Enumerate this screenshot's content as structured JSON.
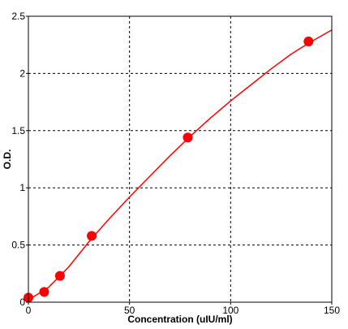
{
  "chart_data": {
    "type": "scatter",
    "title": "",
    "xlabel": "Concentration (uIU/ml)",
    "ylabel": "O.D.",
    "xlim": [
      0,
      150
    ],
    "ylim": [
      0,
      2.5
    ],
    "x_ticks": [
      "0",
      "50",
      "100",
      "150"
    ],
    "y_ticks": [
      "0",
      "0.5",
      "1",
      "1.5",
      "2",
      "2.5"
    ],
    "grid": true,
    "grid_style": "dashed",
    "legend": "none",
    "series": [
      {
        "kind": "points",
        "color": "#ff0000",
        "points": [
          {
            "x": 0,
            "y": 0.04
          },
          {
            "x": 7.8,
            "y": 0.09
          },
          {
            "x": 15.6,
            "y": 0.23
          },
          {
            "x": 31.3,
            "y": 0.58
          },
          {
            "x": 78.8,
            "y": 1.44
          },
          {
            "x": 138.5,
            "y": 2.28
          }
        ]
      },
      {
        "kind": "fitted-curve",
        "color": "#ff0000",
        "points": [
          {
            "x": 0,
            "y": 0.02
          },
          {
            "x": 10,
            "y": 0.13
          },
          {
            "x": 20,
            "y": 0.31
          },
          {
            "x": 30,
            "y": 0.53
          },
          {
            "x": 40,
            "y": 0.73
          },
          {
            "x": 50,
            "y": 0.92
          },
          {
            "x": 60,
            "y": 1.1
          },
          {
            "x": 70,
            "y": 1.28
          },
          {
            "x": 80,
            "y": 1.45
          },
          {
            "x": 90,
            "y": 1.61
          },
          {
            "x": 100,
            "y": 1.76
          },
          {
            "x": 110,
            "y": 1.9
          },
          {
            "x": 120,
            "y": 2.04
          },
          {
            "x": 130,
            "y": 2.17
          },
          {
            "x": 140,
            "y": 2.28
          },
          {
            "x": 150,
            "y": 2.38
          }
        ]
      }
    ]
  }
}
